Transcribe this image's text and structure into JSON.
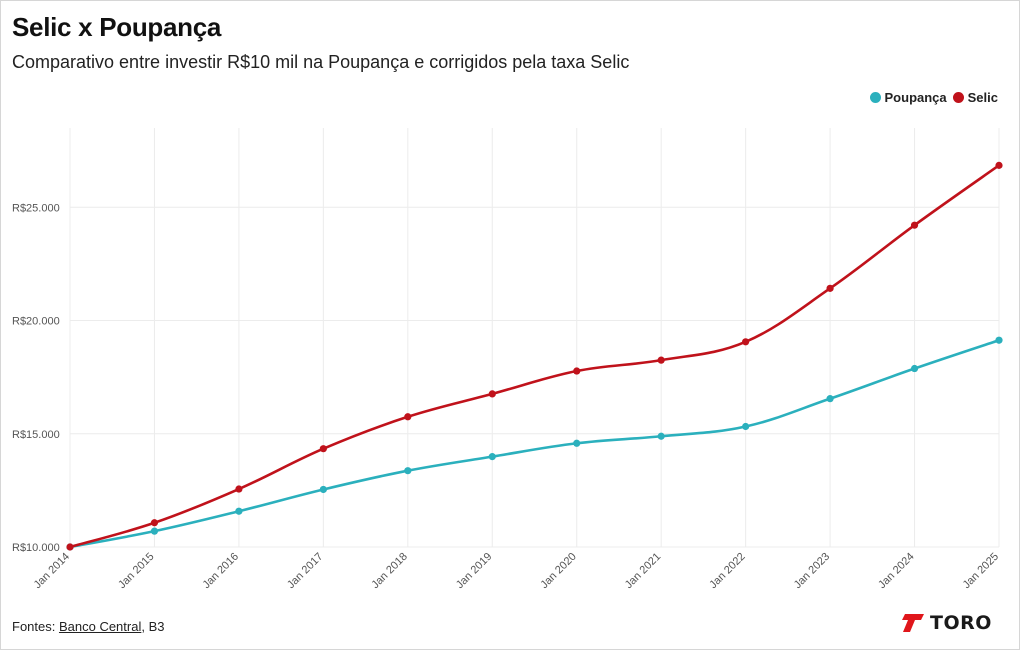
{
  "header": {
    "title": "Selic x Poupança",
    "subtitle": "Comparativo entre investir R$10 mil na Poupança e corrigidos pela taxa Selic"
  },
  "footer": {
    "prefix": "Fontes: ",
    "source_link": "Banco Central",
    "suffix": ", B3"
  },
  "logo": {
    "text": "TORO",
    "icon": "toro-logo-icon",
    "color": "#e0161b"
  },
  "chart_data": {
    "type": "line",
    "title": "Selic x Poupança",
    "subtitle": "Comparativo entre investir R$10 mil na Poupança e corrigidos pela taxa Selic",
    "xlabel": "",
    "ylabel": "",
    "x": [
      "Jan 2014",
      "Jan 2015",
      "Jan 2016",
      "Jan 2017",
      "Jan 2018",
      "Jan 2019",
      "Jan 2020",
      "Jan 2021",
      "Jan 2022",
      "Jan 2023",
      "Jan 2024",
      "Jan 2025"
    ],
    "y_ticks": [
      10000,
      15000,
      20000,
      25000
    ],
    "y_tick_labels": [
      "R$10.000",
      "R$15.000",
      "R$20.000",
      "R$25.000"
    ],
    "ylim": [
      10000,
      28500
    ],
    "grid": true,
    "legend_position": "top-right",
    "series": [
      {
        "name": "Poupança",
        "color": "#2bb0bd",
        "values": [
          10000,
          10700,
          11580,
          12540,
          13370,
          13990,
          14580,
          14890,
          15320,
          16550,
          17880,
          19130
        ]
      },
      {
        "name": "Selic",
        "color": "#c0121b",
        "values": [
          10000,
          11070,
          12560,
          14340,
          15750,
          16760,
          17770,
          18250,
          19060,
          21420,
          24210,
          26850
        ]
      }
    ]
  }
}
